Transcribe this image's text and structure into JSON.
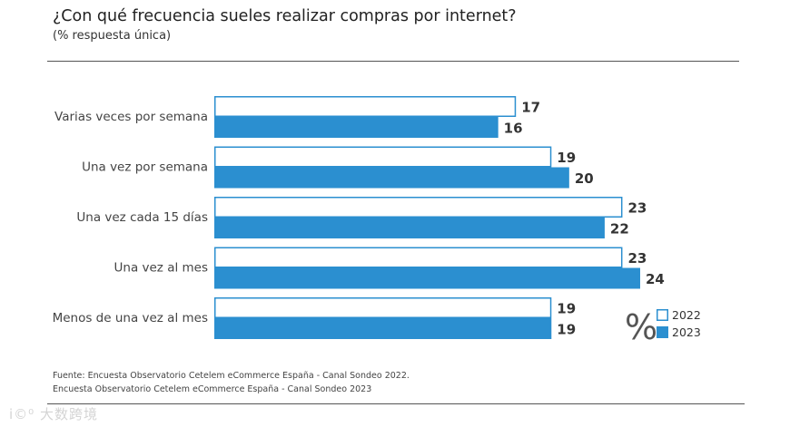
{
  "header": {
    "title": "¿Con qué frecuencia sueles realizar compras por internet?",
    "subtitle": "(% respuesta única)"
  },
  "chart_data": {
    "type": "bar",
    "orientation": "horizontal",
    "title": "¿Con qué frecuencia sueles realizar compras por internet?",
    "subtitle": "(% respuesta única)",
    "categories": [
      "Varias veces por semana",
      "Una vez por semana",
      "Una vez cada 15 días",
      "Una vez al mes",
      "Menos de una vez al mes"
    ],
    "series": [
      {
        "name": "2022",
        "values": [
          17,
          19,
          23,
          23,
          19
        ],
        "fill": "#ffffff",
        "stroke": "#2b8fd0"
      },
      {
        "name": "2023",
        "values": [
          16,
          20,
          22,
          24,
          19
        ],
        "fill": "#2b8fd0",
        "stroke": "#2b8fd0"
      }
    ],
    "unit_symbol": "%",
    "xlim": [
      0,
      24
    ],
    "legend_position": "bottom-right",
    "grid": false
  },
  "footer": {
    "source_line_1": "Fuente: Encuesta Observatorio Cetelem eCommerce España - Canal Sondeo 2022.",
    "source_line_2": "Encuesta Observatorio Cetelem eCommerce España - Canal Sondeo 2023"
  },
  "watermark": "i©⁰ 大数跨境",
  "colors": {
    "accent": "#2b8fd0",
    "label": "#444444",
    "value": "#333333"
  }
}
